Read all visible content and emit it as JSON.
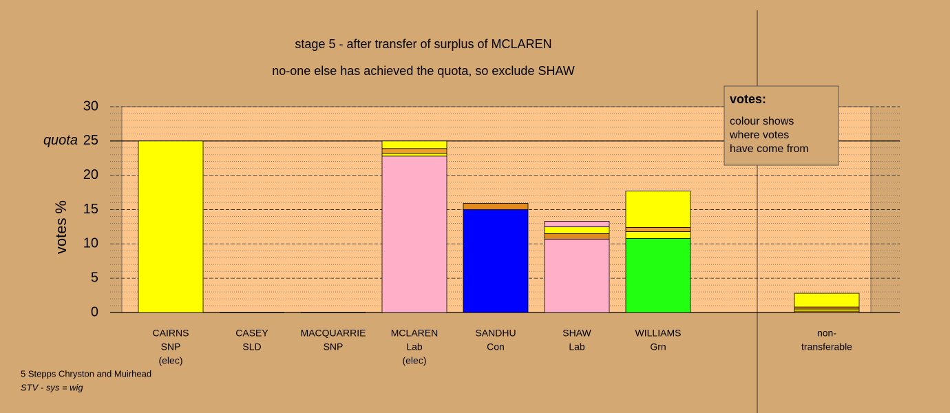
{
  "chart_data": {
    "type": "stacked-bar",
    "title": "stage 5 - after transfer of surplus of MCLAREN",
    "subtitle": "no-one else has achieved the quota, so exclude SHAW",
    "ylabel": "votes %",
    "ylim": [
      0,
      30
    ],
    "yticks": [
      0,
      5,
      10,
      15,
      20,
      25,
      30
    ],
    "minor_step": 1,
    "quota": {
      "value": 25,
      "label": "quota"
    },
    "bars": [
      {
        "label": [
          "CAIRNS",
          "SNP",
          "(elec)"
        ],
        "segments": [
          {
            "value": 25,
            "color": "#ffff00"
          }
        ]
      },
      {
        "label": [
          "CASEY",
          "SLD"
        ],
        "segments": [
          {
            "value": 0
          }
        ]
      },
      {
        "label": [
          "MACQUARRIE",
          "SNP"
        ],
        "segments": [
          {
            "value": 0
          }
        ]
      },
      {
        "label": [
          "MCLAREN",
          "Lab",
          "(elec)"
        ],
        "segments": [
          {
            "value": 22.8,
            "color": "#ffb0c8"
          },
          {
            "value": 0.4,
            "color": "#ffff00"
          },
          {
            "value": 0.7,
            "color": "#f0a030"
          },
          {
            "value": 1.1,
            "color": "#ffff00"
          }
        ]
      },
      {
        "label": [
          "SANDHU",
          "Con"
        ],
        "segments": [
          {
            "value": 15.0,
            "color": "#0000ff"
          },
          {
            "value": 0.9,
            "color": "#e08a20"
          }
        ]
      },
      {
        "label": [
          "SHAW",
          "Lab"
        ],
        "segments": [
          {
            "value": 10.7,
            "color": "#ffb0c8"
          },
          {
            "value": 0.8,
            "color": "#e08a20"
          },
          {
            "value": 1.0,
            "color": "#ffff00"
          },
          {
            "value": 0.8,
            "color": "#ffb0c8"
          }
        ]
      },
      {
        "label": [
          "WILLIAMS",
          "Grn"
        ],
        "segments": [
          {
            "value": 10.8,
            "color": "#22ff11"
          },
          {
            "value": 1.0,
            "color": "#ffff00"
          },
          {
            "value": 0.6,
            "color": "#f0a030"
          },
          {
            "value": 5.3,
            "color": "#ffff00"
          }
        ]
      }
    ],
    "nontransferable": {
      "label": [
        "non-",
        "transferable"
      ],
      "segments": [
        {
          "value": 0.2,
          "color": "#f0a030"
        },
        {
          "value": 0.3,
          "color": "#ffff00"
        },
        {
          "value": 0.3,
          "color": "#e08a20"
        },
        {
          "value": 2.0,
          "color": "#ffff00"
        }
      ]
    },
    "legend": {
      "title": "votes:",
      "lines": [
        "colour shows",
        "where votes",
        "have come from"
      ]
    },
    "footer": [
      "5 Stepps Chryston and Muirhead",
      "STV - sys = wig"
    ]
  }
}
